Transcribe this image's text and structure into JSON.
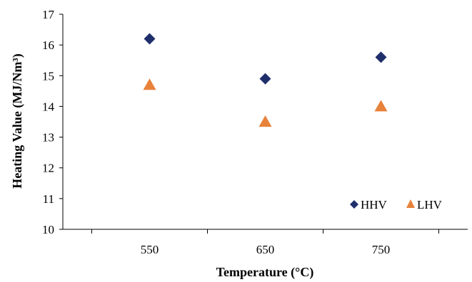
{
  "chart_data": {
    "type": "scatter",
    "x_categories": [
      "550",
      "650",
      "750"
    ],
    "xlabel": "Temperature (°C)",
    "ylabel": "Heating Value (MJ/Nm³)",
    "ylim": [
      10,
      17
    ],
    "yticks": [
      "10",
      "11",
      "12",
      "13",
      "14",
      "15",
      "16",
      "17"
    ],
    "grid": false,
    "legend_position": "bottom-right",
    "series": [
      {
        "name": "HHV",
        "marker": "diamond",
        "color": "#1f2f6b",
        "values": [
          16.2,
          14.9,
          15.6
        ]
      },
      {
        "name": "LHV",
        "marker": "triangle",
        "color": "#e8823a",
        "values": [
          14.7,
          13.5,
          14.0
        ]
      }
    ]
  }
}
